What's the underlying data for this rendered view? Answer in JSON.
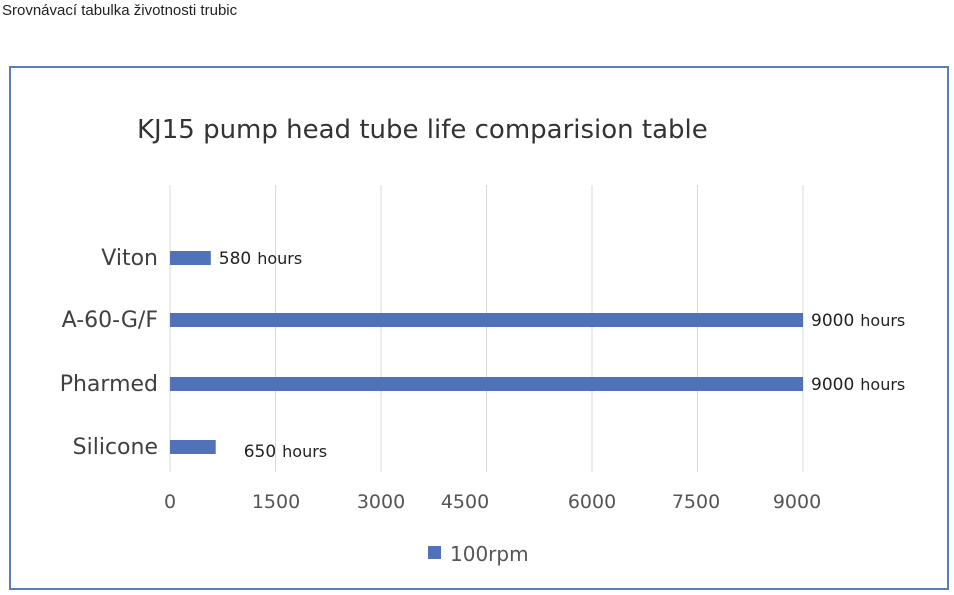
{
  "page": {
    "caption": "Srovnávací tabulka životnosti trubic"
  },
  "chart_data": {
    "type": "bar",
    "orientation": "horizontal",
    "title": "KJ15 pump head tube life comparision table",
    "categories": [
      "Viton",
      "A-60-G/F",
      "Pharmed",
      "Silicone"
    ],
    "series": [
      {
        "name": "100rpm",
        "values": [
          580,
          9000,
          9000,
          650
        ],
        "color": "#4f72b8"
      }
    ],
    "data_labels": [
      {
        "value": "580",
        "unit": "hours"
      },
      {
        "value": "9000",
        "unit": "hours"
      },
      {
        "value": "9000",
        "unit": "hours"
      },
      {
        "value": "650",
        "unit": "hours"
      }
    ],
    "x_ticks": [
      {
        "value": 0,
        "label": "0"
      },
      {
        "value": 1500,
        "label": "1500"
      },
      {
        "value": 3000,
        "label": "3000"
      },
      {
        "value": 4500,
        "label": "4500"
      },
      {
        "value": 6000,
        "label": "6000"
      },
      {
        "value": 7500,
        "label": "7500"
      },
      {
        "value": 9000,
        "label": "9000"
      }
    ],
    "xlim": [
      0,
      9000
    ],
    "grid": true,
    "legend_position": "bottom",
    "colors": {
      "bar": "#4f72b8",
      "grid": "#d9d9d9",
      "frame": "#5a7fb3",
      "text": "#333333"
    }
  }
}
